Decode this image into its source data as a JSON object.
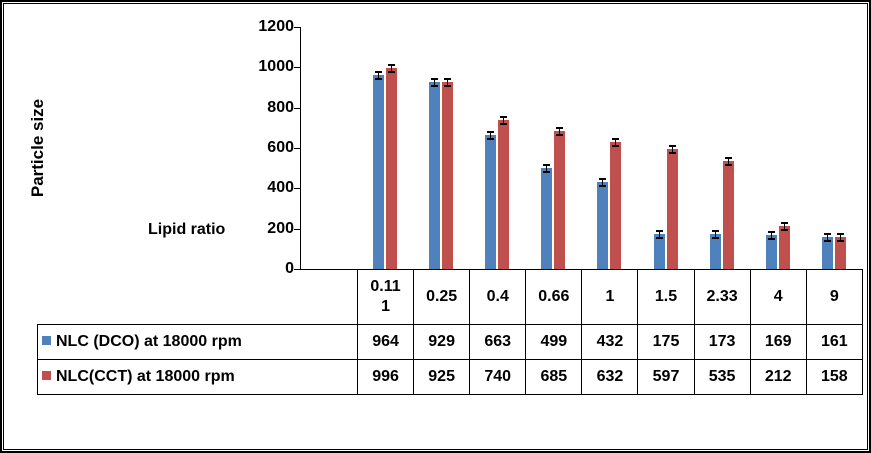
{
  "chart_data": {
    "type": "bar",
    "ylabel": "Particle size",
    "xlabel": "Lipid ratio",
    "categories": [
      "0.111",
      "0.25",
      "0.4",
      "0.66",
      "1",
      "1.5",
      "2.33",
      "4",
      "9"
    ],
    "series": [
      {
        "name": "NLC (DCO) at 18000 rpm",
        "color": "#4f81bd",
        "values": [
          964,
          929,
          663,
          499,
          432,
          175,
          173,
          169,
          161
        ]
      },
      {
        "name": "NLC(CCT) at 18000 rpm",
        "color": "#c0504d",
        "values": [
          996,
          925,
          740,
          685,
          632,
          597,
          535,
          212,
          158
        ]
      }
    ],
    "ylim": [
      0,
      1200
    ],
    "yticks": [
      1200,
      1000,
      800,
      600,
      400,
      200,
      0
    ],
    "grid": false,
    "error_bars": true,
    "legend_position": "data-table"
  },
  "colors": {
    "series_dco": "#4f81bd",
    "series_cct": "#c0504d",
    "axis": "#000000",
    "background": "#ffffff"
  }
}
